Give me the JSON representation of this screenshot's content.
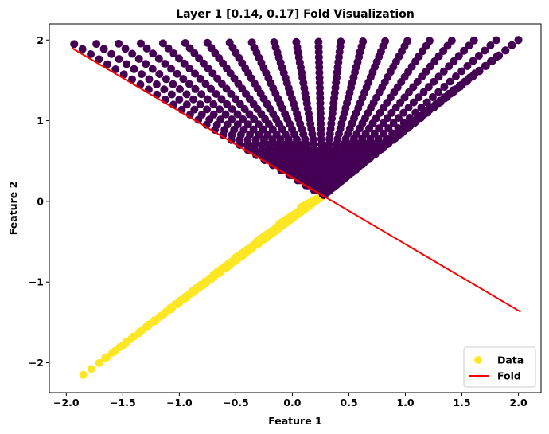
{
  "chart_data": {
    "type": "scatter",
    "title": "Layer 1 [0.14, 0.17] Fold Visualization",
    "xlabel": "Feature 1",
    "ylabel": "Feature 2",
    "xlim": [
      -2.15,
      2.2
    ],
    "ylim": [
      -2.37,
      2.2
    ],
    "xticks": [
      -2.0,
      -1.5,
      -1.0,
      -0.5,
      0.0,
      0.5,
      1.0,
      1.5,
      2.0
    ],
    "xtick_labels": [
      "−2.0",
      "−1.5",
      "−1.0",
      "−0.5",
      "0.0",
      "0.5",
      "1.0",
      "1.5",
      "2.0"
    ],
    "yticks": [
      -2,
      -1,
      0,
      1,
      2
    ],
    "ytick_labels": [
      "−2",
      "−1",
      "0",
      "1",
      "2"
    ],
    "grid": false,
    "legend_position": "bottom-right",
    "colors": {
      "purple": "#440154",
      "yellow": "#fde725",
      "fold": "#ff0000"
    },
    "series": [
      {
        "name": "Data",
        "kind": "scatter",
        "colormap": "viridis two-class (purple above fold, yellow below fold)",
        "generator": "grid of 30 rows x 21 columns; rows t from 0 to 1, columns s from -1 to 1; point = A + t*((1-u)*B + u*C - A), u=(s+1)/2, with A=(0.27,0.07), B=(-1.93,1.95), C=(2.0,2.0) for upper sheet and A=(0.27,0.07), B=(-1.85,-2.15), C=(2.0,2.0) for lower sheet; class purple where point lies above the fold line",
        "sheets": [
          {
            "apex": [
              0.27,
              0.07
            ],
            "edge_start": [
              -1.93,
              1.95
            ],
            "edge_end": [
              2.0,
              2.0
            ]
          },
          {
            "apex": [
              0.27,
              0.07
            ],
            "edge_start": [
              -1.85,
              -2.15
            ],
            "edge_end": [
              2.0,
              2.0
            ]
          }
        ]
      },
      {
        "name": "Fold",
        "kind": "line",
        "x": [
          -1.95,
          2.02
        ],
        "y": [
          1.9,
          -1.37
        ]
      }
    ]
  }
}
